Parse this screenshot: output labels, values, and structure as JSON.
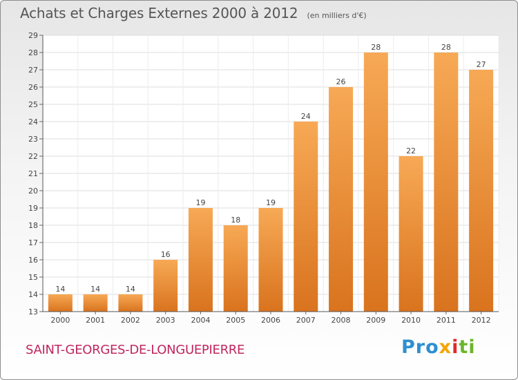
{
  "chart_data": {
    "type": "bar",
    "title": "Achats et Charges Externes 2000 à 2012",
    "subtitle": "(en milliers d'€)",
    "categories": [
      "2000",
      "2001",
      "2002",
      "2003",
      "2004",
      "2005",
      "2006",
      "2007",
      "2008",
      "2009",
      "2010",
      "2011",
      "2012"
    ],
    "values": [
      14,
      14,
      14,
      16,
      19,
      18,
      19,
      24,
      26,
      28,
      22,
      28,
      27
    ],
    "ylim": [
      13,
      29
    ],
    "yticks": [
      13,
      14,
      15,
      16,
      17,
      18,
      19,
      20,
      21,
      22,
      23,
      24,
      25,
      26,
      27,
      28,
      29
    ],
    "grid": true,
    "xlabel": "",
    "ylabel": "",
    "bar_color": "#f39236",
    "bar_color_light": "#f7a955",
    "bar_color_dark": "#d9731e"
  },
  "footer": {
    "commune": "SAINT-GEORGES-DE-LONGUEPIERRE",
    "logo": [
      "Pro",
      "x",
      "i",
      "ti"
    ]
  }
}
